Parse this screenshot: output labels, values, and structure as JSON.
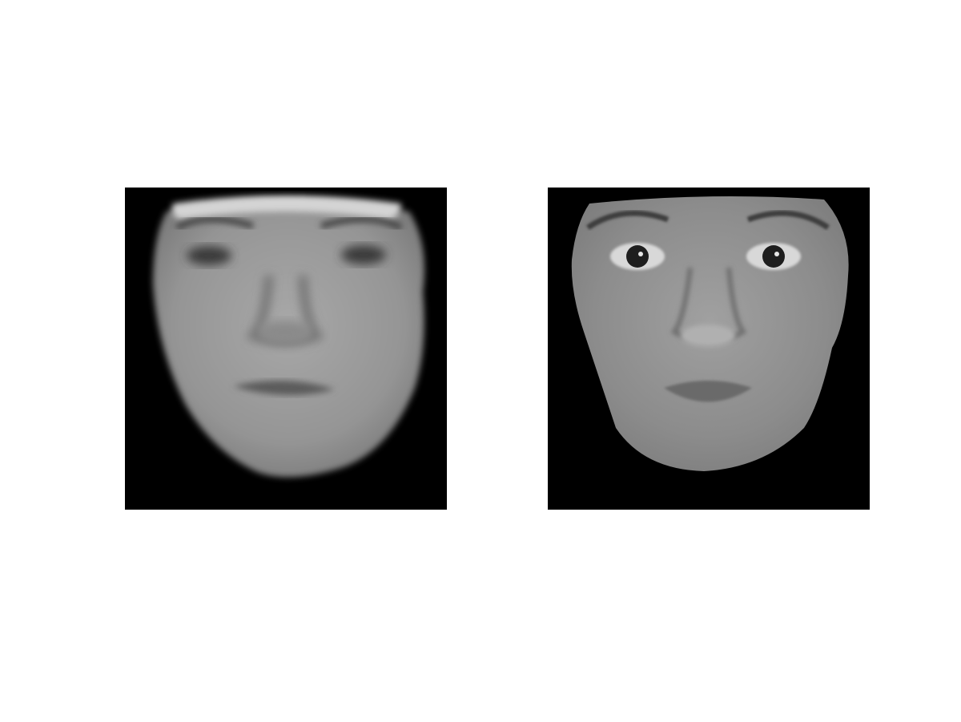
{
  "figure": {
    "panels": [
      {
        "id": "left",
        "content": "blurred-face-grayscale",
        "icon": "face-image"
      },
      {
        "id": "right",
        "content": "sharp-face-grayscale",
        "icon": "face-image"
      }
    ],
    "colors": {
      "background": "#ffffff",
      "panel_background": "#000000",
      "left_face_tone": "#9a9a9a",
      "right_face_tone": "#8e8e8e"
    }
  }
}
